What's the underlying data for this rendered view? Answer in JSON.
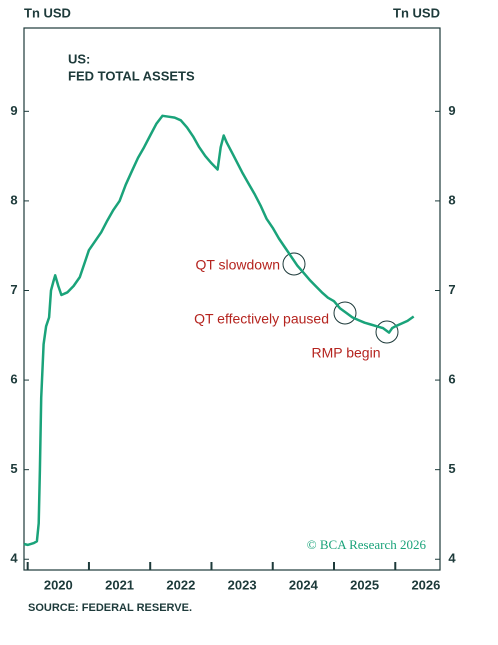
{
  "chart_data": {
    "type": "line",
    "title": "US:",
    "subtitle": "FED TOTAL ASSETS",
    "y_label_left": "Tn USD",
    "y_label_right": "Tn USD",
    "source": "SOURCE: FEDERAL RESERVE.",
    "copyright": "© BCA Research 2026",
    "annotations": [
      "QT slowdown",
      "QT effectively paused",
      "RMP begin"
    ],
    "xlim": [
      2019.94,
      2026.73
    ],
    "xticks": [
      {
        "value": 2020.5,
        "label": "2020"
      },
      {
        "value": 2021.5,
        "label": "2021"
      },
      {
        "value": 2022.5,
        "label": "2022"
      },
      {
        "value": 2023.5,
        "label": "2023"
      },
      {
        "value": 2024.5,
        "label": "2024"
      },
      {
        "value": 2025.5,
        "label": "2025"
      },
      {
        "value": 2026.5,
        "label": "2026"
      }
    ],
    "xtick_marks": [
      2020,
      2021,
      2022,
      2023,
      2024,
      2025,
      2026
    ],
    "ylim": [
      3.88,
      9.93
    ],
    "yticks": [
      4,
      5,
      6,
      7,
      8,
      9
    ],
    "series": [
      {
        "name": "Fed total assets",
        "color": "#1aa37a",
        "x": [
          2019.94,
          2020.0,
          2020.1,
          2020.15,
          2020.18,
          2020.2,
          2020.22,
          2020.26,
          2020.3,
          2020.35,
          2020.38,
          2020.42,
          2020.45,
          2020.5,
          2020.55,
          2020.65,
          2020.75,
          2020.85,
          2020.95,
          2021.0,
          2021.1,
          2021.2,
          2021.3,
          2021.4,
          2021.5,
          2021.6,
          2021.7,
          2021.8,
          2021.9,
          2022.0,
          2022.1,
          2022.2,
          2022.3,
          2022.4,
          2022.5,
          2022.6,
          2022.7,
          2022.8,
          2022.9,
          2023.0,
          2023.1,
          2023.15,
          2023.2,
          2023.25,
          2023.35,
          2023.5,
          2023.6,
          2023.7,
          2023.8,
          2023.9,
          2024.0,
          2024.1,
          2024.2,
          2024.3,
          2024.4,
          2024.5,
          2024.6,
          2024.7,
          2024.8,
          2024.9,
          2025.0,
          2025.1,
          2025.2,
          2025.3,
          2025.4,
          2025.5,
          2025.6,
          2025.7,
          2025.8,
          2025.9,
          2025.95,
          2026.0,
          2026.1,
          2026.2,
          2026.3
        ],
        "values": [
          4.17,
          4.16,
          4.18,
          4.2,
          4.4,
          5.0,
          5.8,
          6.4,
          6.6,
          6.7,
          7.0,
          7.1,
          7.17,
          7.05,
          6.95,
          6.98,
          7.05,
          7.15,
          7.35,
          7.45,
          7.55,
          7.65,
          7.78,
          7.9,
          8.0,
          8.18,
          8.33,
          8.48,
          8.6,
          8.73,
          8.86,
          8.95,
          8.94,
          8.93,
          8.9,
          8.82,
          8.72,
          8.6,
          8.5,
          8.42,
          8.35,
          8.6,
          8.73,
          8.65,
          8.52,
          8.32,
          8.2,
          8.08,
          7.95,
          7.8,
          7.7,
          7.58,
          7.48,
          7.38,
          7.28,
          7.2,
          7.12,
          7.05,
          6.98,
          6.92,
          6.88,
          6.8,
          6.75,
          6.7,
          6.67,
          6.64,
          6.62,
          6.6,
          6.58,
          6.53,
          6.58,
          6.6,
          6.63,
          6.66,
          6.71
        ]
      }
    ]
  }
}
